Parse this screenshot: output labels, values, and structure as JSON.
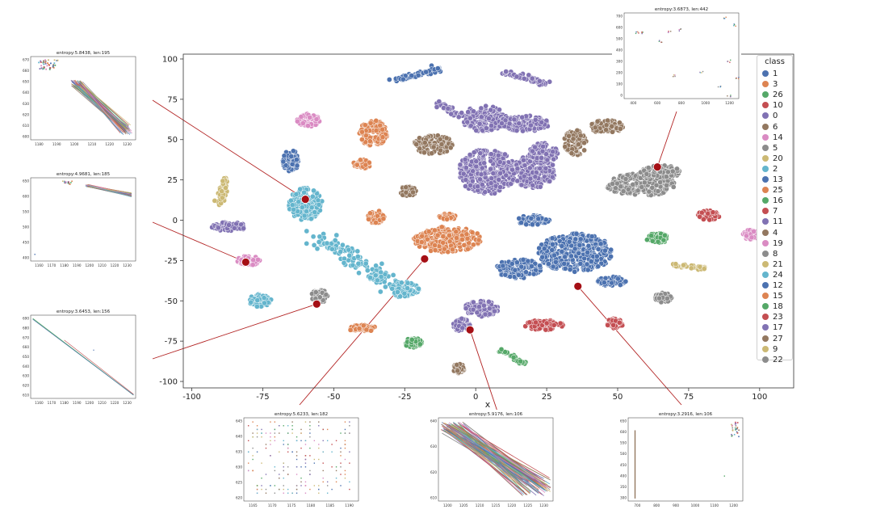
{
  "chart_data": {
    "type": "scatter",
    "xlabel": "x",
    "ylabel": "",
    "xlim": [
      -103,
      112
    ],
    "ylim": [
      -104,
      103
    ],
    "xticks": [
      -100,
      -75,
      -50,
      -25,
      0,
      25,
      50,
      75,
      100
    ],
    "yticks": [
      100,
      75,
      50,
      25,
      0,
      -25,
      -50,
      -75,
      -100
    ],
    "legend_title": "class",
    "legend_position": "right",
    "legend": [
      {
        "label": "1",
        "color": "#4c72b0"
      },
      {
        "label": "3",
        "color": "#dd8452"
      },
      {
        "label": "26",
        "color": "#55a868"
      },
      {
        "label": "10",
        "color": "#c44e52"
      },
      {
        "label": "0",
        "color": "#8172b3"
      },
      {
        "label": "6",
        "color": "#937860"
      },
      {
        "label": "14",
        "color": "#da8bc3"
      },
      {
        "label": "5",
        "color": "#8c8c8c"
      },
      {
        "label": "20",
        "color": "#ccb974"
      },
      {
        "label": "2",
        "color": "#64b5cd"
      },
      {
        "label": "13",
        "color": "#4c72b0"
      },
      {
        "label": "25",
        "color": "#dd8452"
      },
      {
        "label": "16",
        "color": "#55a868"
      },
      {
        "label": "7",
        "color": "#c44e52"
      },
      {
        "label": "11",
        "color": "#8172b3"
      },
      {
        "label": "4",
        "color": "#937860"
      },
      {
        "label": "19",
        "color": "#da8bc3"
      },
      {
        "label": "8",
        "color": "#8c8c8c"
      },
      {
        "label": "21",
        "color": "#ccb974"
      },
      {
        "label": "24",
        "color": "#64b5cd"
      },
      {
        "label": "12",
        "color": "#4c72b0"
      },
      {
        "label": "15",
        "color": "#dd8452"
      },
      {
        "label": "18",
        "color": "#55a868"
      },
      {
        "label": "23",
        "color": "#c44e52"
      },
      {
        "label": "17",
        "color": "#8172b3"
      },
      {
        "label": "27",
        "color": "#937860"
      },
      {
        "label": "9",
        "color": "#ccb974"
      },
      {
        "label": "22",
        "color": "#8c8c8c"
      }
    ],
    "clusters": [
      {
        "color": "#4c72b0",
        "kind": "line",
        "from": [
          -28,
          87
        ],
        "to": [
          -12,
          94
        ],
        "spread": 2
      },
      {
        "color": "#8172b3",
        "kind": "line",
        "from": [
          10,
          92
        ],
        "to": [
          25,
          84
        ],
        "spread": 2
      },
      {
        "color": "#8172b3",
        "kind": "blob",
        "center": [
          3,
          63
        ],
        "radius": [
          8,
          8
        ]
      },
      {
        "color": "#8172b3",
        "kind": "blob",
        "center": [
          17,
          60
        ],
        "radius": [
          9,
          5
        ]
      },
      {
        "color": "#8172b3",
        "kind": "line",
        "from": [
          -13,
          73
        ],
        "to": [
          -6,
          65
        ],
        "spread": 2
      },
      {
        "color": "#da8bc3",
        "kind": "blob",
        "center": [
          -59,
          62
        ],
        "radius": [
          4,
          4
        ]
      },
      {
        "color": "#dd8452",
        "kind": "blob",
        "center": [
          -36,
          54
        ],
        "radius": [
          5,
          8
        ]
      },
      {
        "color": "#937860",
        "kind": "blob",
        "center": [
          -15,
          47
        ],
        "radius": [
          7,
          6
        ]
      },
      {
        "color": "#4c72b0",
        "kind": "blob",
        "center": [
          -65,
          37
        ],
        "radius": [
          3,
          7
        ]
      },
      {
        "color": "#dd8452",
        "kind": "blob",
        "center": [
          -40,
          35
        ],
        "radius": [
          3,
          3
        ]
      },
      {
        "color": "#8172b3",
        "kind": "blob",
        "center": [
          4,
          30
        ],
        "radius": [
          10,
          14
        ]
      },
      {
        "color": "#8172b3",
        "kind": "blob",
        "center": [
          20,
          30
        ],
        "radius": [
          8,
          10
        ]
      },
      {
        "color": "#8172b3",
        "kind": "blob",
        "center": [
          24,
          42
        ],
        "radius": [
          5,
          6
        ]
      },
      {
        "color": "#937860",
        "kind": "blob",
        "center": [
          -24,
          18
        ],
        "radius": [
          3,
          3
        ]
      },
      {
        "color": "#937860",
        "kind": "blob",
        "center": [
          35,
          48
        ],
        "radius": [
          4,
          8
        ]
      },
      {
        "color": "#937860",
        "kind": "blob",
        "center": [
          46,
          58
        ],
        "radius": [
          6,
          4
        ]
      },
      {
        "color": "#8c8c8c",
        "kind": "blob",
        "center": [
          58,
          22
        ],
        "radius": [
          12,
          7
        ]
      },
      {
        "color": "#8c8c8c",
        "kind": "blob",
        "center": [
          65,
          30
        ],
        "radius": [
          7,
          4
        ]
      },
      {
        "color": "#ccb974",
        "kind": "line",
        "from": [
          -90,
          11
        ],
        "to": [
          -88,
          26
        ],
        "spread": 1.5
      },
      {
        "color": "#8172b3",
        "kind": "blob",
        "center": [
          -87,
          -4
        ],
        "radius": [
          6,
          3
        ]
      },
      {
        "color": "#64b5cd",
        "kind": "blob",
        "center": [
          -60,
          10
        ],
        "radius": [
          6,
          10
        ]
      },
      {
        "color": "#64b5cd",
        "kind": "line",
        "from": [
          -55,
          -10
        ],
        "to": [
          -30,
          -40
        ],
        "spread": 6
      },
      {
        "color": "#64b5cd",
        "kind": "blob",
        "center": [
          -25,
          -43
        ],
        "radius": [
          5,
          5
        ]
      },
      {
        "color": "#64b5cd",
        "kind": "blob",
        "center": [
          -76,
          -50
        ],
        "radius": [
          4,
          4
        ]
      },
      {
        "color": "#dd8452",
        "kind": "blob",
        "center": [
          -35,
          2
        ],
        "radius": [
          3,
          4
        ]
      },
      {
        "color": "#dd8452",
        "kind": "blob",
        "center": [
          -10,
          -12
        ],
        "radius": [
          12,
          8
        ]
      },
      {
        "color": "#dd8452",
        "kind": "blob",
        "center": [
          -10,
          2
        ],
        "radius": [
          3,
          2
        ]
      },
      {
        "color": "#da8bc3",
        "kind": "blob",
        "center": [
          -80,
          -25
        ],
        "radius": [
          4,
          3
        ]
      },
      {
        "color": "#8c8c8c",
        "kind": "blob",
        "center": [
          -55,
          -47
        ],
        "radius": [
          3,
          4
        ]
      },
      {
        "color": "#dd8452",
        "kind": "blob",
        "center": [
          -40,
          -67
        ],
        "radius": [
          5,
          2
        ]
      },
      {
        "color": "#4c72b0",
        "kind": "blob",
        "center": [
          35,
          -20
        ],
        "radius": [
          13,
          12
        ]
      },
      {
        "color": "#4c72b0",
        "kind": "blob",
        "center": [
          15,
          -30
        ],
        "radius": [
          8,
          6
        ]
      },
      {
        "color": "#4c72b0",
        "kind": "blob",
        "center": [
          20,
          0
        ],
        "radius": [
          6,
          3
        ]
      },
      {
        "color": "#4c72b0",
        "kind": "blob",
        "center": [
          48,
          -38
        ],
        "radius": [
          5,
          3
        ]
      },
      {
        "color": "#8172b3",
        "kind": "blob",
        "center": [
          2,
          -55
        ],
        "radius": [
          6,
          5
        ]
      },
      {
        "color": "#8172b3",
        "kind": "blob",
        "center": [
          -5,
          -65
        ],
        "radius": [
          3,
          4
        ]
      },
      {
        "color": "#55a868",
        "kind": "blob",
        "center": [
          -22,
          -76
        ],
        "radius": [
          3,
          3
        ]
      },
      {
        "color": "#55a868",
        "kind": "line",
        "from": [
          9,
          -81
        ],
        "to": [
          17,
          -89
        ],
        "spread": 1.2
      },
      {
        "color": "#937860",
        "kind": "blob",
        "center": [
          -6,
          -92
        ],
        "radius": [
          2,
          3
        ]
      },
      {
        "color": "#c44e52",
        "kind": "blob",
        "center": [
          24,
          -65
        ],
        "radius": [
          7,
          3
        ]
      },
      {
        "color": "#c44e52",
        "kind": "blob",
        "center": [
          49,
          -64
        ],
        "radius": [
          3,
          3
        ]
      },
      {
        "color": "#c44e52",
        "kind": "blob",
        "center": [
          82,
          3
        ],
        "radius": [
          4,
          3
        ]
      },
      {
        "color": "#55a868",
        "kind": "blob",
        "center": [
          64,
          -11
        ],
        "radius": [
          4,
          3
        ]
      },
      {
        "color": "#ccb974",
        "kind": "line",
        "from": [
          69,
          -28
        ],
        "to": [
          81,
          -30
        ],
        "spread": 1.2
      },
      {
        "color": "#8c8c8c",
        "kind": "blob",
        "center": [
          66,
          -48
        ],
        "radius": [
          3,
          3
        ]
      },
      {
        "color": "#da8bc3",
        "kind": "blob",
        "center": [
          97,
          -9
        ],
        "radius": [
          3,
          3
        ]
      }
    ],
    "highlights": [
      {
        "point": [
          -60,
          13
        ],
        "inset": "inset-1"
      },
      {
        "point": [
          -81,
          -26
        ],
        "inset": "inset-2"
      },
      {
        "point": [
          -56,
          -52
        ],
        "inset": "inset-3"
      },
      {
        "point": [
          -18,
          -24
        ],
        "inset": "inset-4"
      },
      {
        "point": [
          -2,
          -68
        ],
        "inset": "inset-5"
      },
      {
        "point": [
          36,
          -41
        ],
        "inset": "inset-6"
      },
      {
        "point": [
          64,
          33
        ],
        "inset": "inset-7"
      }
    ],
    "insets": [
      {
        "id": "inset-1",
        "title": "entropy:5.8438, len:195",
        "xticks": [
          "1180",
          "1190",
          "1200",
          "1210",
          "1220",
          "1230"
        ],
        "yticks": [
          "670",
          "660",
          "650",
          "640",
          "630",
          "620",
          "610",
          "600"
        ],
        "pattern": "bundle-diag"
      },
      {
        "id": "inset-2",
        "title": "entropy:4.9681, len:185",
        "xticks": [
          "1160",
          "1170",
          "1180",
          "1190",
          "1200",
          "1210",
          "1220",
          "1230"
        ],
        "yticks": [
          "650",
          "600",
          "550",
          "500",
          "450",
          "400"
        ],
        "pattern": "flat-band"
      },
      {
        "id": "inset-3",
        "title": "entropy:3.6453, len:156",
        "xticks": [
          "1160",
          "1170",
          "1180",
          "1190",
          "1200",
          "1210",
          "1220",
          "1230"
        ],
        "yticks": [
          "690",
          "680",
          "670",
          "660",
          "650",
          "640",
          "630",
          "620",
          "610"
        ],
        "pattern": "single-diag"
      },
      {
        "id": "inset-4",
        "title": "entropy:5.6233, len:182",
        "xticks": [
          "1165",
          "1170",
          "1175",
          "1180",
          "1185",
          "1190"
        ],
        "yticks": [
          "645",
          "640",
          "635",
          "630",
          "625",
          "620"
        ],
        "pattern": "grid-scatter"
      },
      {
        "id": "inset-5",
        "title": "entropy:5.9176, len:106",
        "xticks": [
          "1200",
          "1205",
          "1210",
          "1215",
          "1220",
          "1225",
          "1230"
        ],
        "yticks": [
          "640",
          "630",
          "620",
          "610"
        ],
        "pattern": "wide-bundle"
      },
      {
        "id": "inset-6",
        "title": "entropy:3.2916, len:106",
        "xticks": [
          "700",
          "800",
          "900",
          "1000",
          "1100",
          "1200"
        ],
        "yticks": [
          "650",
          "600",
          "550",
          "500",
          "450",
          "400",
          "350",
          "300"
        ],
        "pattern": "vertical-corner"
      },
      {
        "id": "inset-7",
        "title": "entropy:3.6873, len:442",
        "xticks": [
          "400",
          "600",
          "800",
          "1000",
          "1200"
        ],
        "yticks": [
          "700",
          "600",
          "500",
          "400",
          "300",
          "200",
          "100",
          "0"
        ],
        "pattern": "sparse-points"
      }
    ]
  }
}
